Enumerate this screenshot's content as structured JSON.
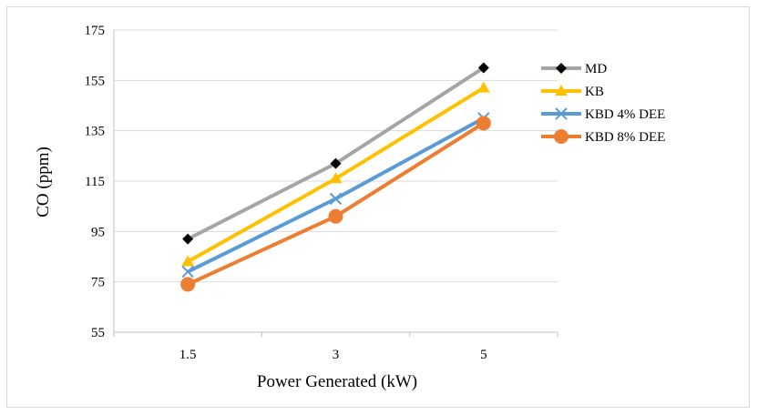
{
  "chart_data": {
    "type": "line",
    "categories": [
      "1.5",
      "3",
      "5"
    ],
    "xlabel": "Power Generated (kW)",
    "ylabel": "CO (ppm)",
    "ylim": [
      55,
      175
    ],
    "yticks": [
      "55",
      "75",
      "95",
      "115",
      "135",
      "155",
      "175"
    ],
    "grid": "horizontal",
    "legend_position": "right",
    "series": [
      {
        "name": "MD",
        "values": [
          92,
          122,
          160
        ],
        "color": "#a5a5a5",
        "marker": "diamond",
        "marker_color": "#000000"
      },
      {
        "name": "KB",
        "values": [
          83,
          116,
          152
        ],
        "color": "#ffc000",
        "marker": "triangle",
        "marker_color": "#ffc000"
      },
      {
        "name": "KBD 4% DEE",
        "values": [
          79,
          108,
          140
        ],
        "color": "#5b9bd5",
        "marker": "x",
        "marker_color": "#5b9bd5"
      },
      {
        "name": "KBD 8% DEE",
        "values": [
          74,
          101,
          138
        ],
        "color": "#ed7d31",
        "marker": "circle",
        "marker_color": "#ed7d31"
      }
    ]
  }
}
